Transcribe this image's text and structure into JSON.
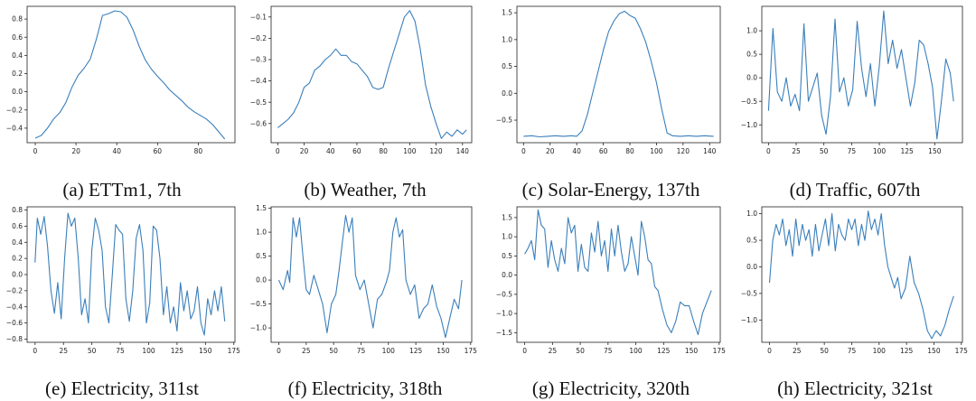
{
  "colors": {
    "line": "#3a7fbb",
    "axis": "#222222",
    "background": "#ffffff"
  },
  "chart_data": [
    {
      "id": "a",
      "type": "line",
      "caption": "(a) ETTm1, 7th",
      "xlim": [
        -4,
        98
      ],
      "ylim": [
        -0.56,
        0.94
      ],
      "xticks": [
        0,
        20,
        40,
        60,
        80
      ],
      "yticks": [
        -0.4,
        -0.2,
        0.0,
        0.2,
        0.4,
        0.6,
        0.8
      ],
      "ytick_labels": [
        "−0.4",
        "−0.2",
        "0.0",
        "0.2",
        "0.4",
        "0.6",
        "0.8"
      ],
      "x": [
        0,
        3,
        6,
        9,
        12,
        15,
        18,
        21,
        24,
        27,
        30,
        33,
        36,
        39,
        42,
        45,
        48,
        51,
        54,
        57,
        60,
        63,
        66,
        69,
        72,
        75,
        78,
        81,
        84,
        87,
        90,
        93
      ],
      "y": [
        -0.51,
        -0.48,
        -0.4,
        -0.3,
        -0.23,
        -0.12,
        0.05,
        0.18,
        0.26,
        0.36,
        0.58,
        0.84,
        0.86,
        0.89,
        0.88,
        0.82,
        0.68,
        0.5,
        0.35,
        0.25,
        0.17,
        0.1,
        0.02,
        -0.04,
        -0.1,
        -0.17,
        -0.22,
        -0.26,
        -0.3,
        -0.36,
        -0.44,
        -0.52
      ]
    },
    {
      "id": "b",
      "type": "line",
      "caption": "(b) Weather, 7th",
      "xlim": [
        -5,
        147
      ],
      "ylim": [
        -0.69,
        -0.05
      ],
      "xticks": [
        0,
        20,
        40,
        60,
        80,
        100,
        120,
        140
      ],
      "yticks": [
        -0.6,
        -0.5,
        -0.4,
        -0.3,
        -0.2,
        -0.1
      ],
      "ytick_labels": [
        "−0.6",
        "−0.5",
        "−0.4",
        "−0.3",
        "−0.2",
        "−0.1"
      ],
      "x": [
        0,
        4,
        8,
        12,
        16,
        20,
        24,
        28,
        32,
        36,
        40,
        44,
        48,
        52,
        56,
        60,
        64,
        68,
        72,
        76,
        80,
        84,
        88,
        92,
        96,
        100,
        104,
        108,
        112,
        116,
        120,
        124,
        128,
        132,
        136,
        140,
        143
      ],
      "y": [
        -0.62,
        -0.6,
        -0.58,
        -0.55,
        -0.5,
        -0.43,
        -0.41,
        -0.35,
        -0.33,
        -0.3,
        -0.28,
        -0.25,
        -0.28,
        -0.28,
        -0.31,
        -0.32,
        -0.35,
        -0.38,
        -0.43,
        -0.44,
        -0.43,
        -0.34,
        -0.26,
        -0.18,
        -0.1,
        -0.07,
        -0.12,
        -0.25,
        -0.42,
        -0.52,
        -0.6,
        -0.67,
        -0.64,
        -0.66,
        -0.63,
        -0.65,
        -0.63
      ]
    },
    {
      "id": "c",
      "type": "line",
      "caption": "(c) Solar-Energy, 137th",
      "xlim": [
        -5,
        148
      ],
      "ylim": [
        -0.92,
        1.62
      ],
      "xticks": [
        0,
        20,
        40,
        60,
        80,
        100,
        120,
        140
      ],
      "yticks": [
        -0.5,
        0.0,
        0.5,
        1.0,
        1.5
      ],
      "ytick_labels": [
        "−0.5",
        "0.0",
        "0.5",
        "1.0",
        "1.5"
      ],
      "x": [
        0,
        6,
        12,
        18,
        24,
        30,
        36,
        40,
        44,
        48,
        52,
        56,
        60,
        64,
        68,
        72,
        76,
        80,
        84,
        88,
        92,
        96,
        100,
        104,
        108,
        112,
        118,
        124,
        130,
        136,
        143
      ],
      "y": [
        -0.8,
        -0.79,
        -0.81,
        -0.8,
        -0.79,
        -0.8,
        -0.79,
        -0.8,
        -0.7,
        -0.4,
        0.0,
        0.4,
        0.8,
        1.15,
        1.35,
        1.48,
        1.53,
        1.45,
        1.4,
        1.2,
        0.95,
        0.6,
        0.2,
        -0.3,
        -0.74,
        -0.79,
        -0.8,
        -0.79,
        -0.8,
        -0.79,
        -0.8
      ]
    },
    {
      "id": "d",
      "type": "line",
      "caption": "(d) Traffic, 607th",
      "xlim": [
        -6,
        175
      ],
      "ylim": [
        -1.38,
        1.52
      ],
      "xticks": [
        0,
        25,
        50,
        75,
        100,
        125,
        150
      ],
      "yticks": [
        -1.0,
        -0.5,
        0.0,
        0.5,
        1.0
      ],
      "ytick_labels": [
        "−1.0",
        "−0.5",
        "0.0",
        "0.5",
        "1.0"
      ],
      "x": [
        0,
        4,
        8,
        12,
        16,
        20,
        24,
        28,
        32,
        36,
        40,
        44,
        48,
        52,
        56,
        60,
        64,
        68,
        72,
        76,
        80,
        84,
        88,
        92,
        96,
        100,
        104,
        108,
        112,
        116,
        120,
        124,
        128,
        132,
        136,
        140,
        144,
        148,
        152,
        156,
        160,
        164,
        167
      ],
      "y": [
        -0.7,
        1.05,
        -0.3,
        -0.5,
        0.0,
        -0.6,
        -0.35,
        -0.7,
        1.15,
        -0.5,
        -0.2,
        0.1,
        -0.8,
        -1.2,
        -0.4,
        1.25,
        -0.3,
        0.0,
        -0.6,
        -0.25,
        1.2,
        0.2,
        -0.4,
        0.3,
        -0.6,
        0.25,
        1.42,
        0.3,
        0.8,
        0.2,
        0.6,
        0.0,
        -0.6,
        -0.1,
        0.8,
        0.7,
        0.3,
        -0.2,
        -1.3,
        -0.5,
        0.4,
        0.1,
        -0.5
      ]
    },
    {
      "id": "e",
      "type": "line",
      "caption": "(e) Electricity, 311st",
      "xlim": [
        -7,
        176
      ],
      "ylim": [
        -0.84,
        0.84
      ],
      "xticks": [
        0,
        25,
        50,
        75,
        100,
        125,
        150,
        175
      ],
      "yticks": [
        -0.8,
        -0.6,
        -0.4,
        -0.2,
        0.0,
        0.2,
        0.4,
        0.6,
        0.8
      ],
      "ytick_labels": [
        "−0.8",
        "−0.6",
        "−0.4",
        "−0.2",
        "0.0",
        "0.2",
        "0.4",
        "0.6",
        "0.8"
      ],
      "x": [
        0,
        2,
        5,
        8,
        11,
        14,
        17,
        20,
        23,
        26,
        29,
        32,
        35,
        38,
        41,
        44,
        47,
        50,
        53,
        56,
        59,
        62,
        65,
        68,
        71,
        74,
        77,
        80,
        83,
        86,
        89,
        92,
        95,
        98,
        101,
        104,
        107,
        110,
        113,
        116,
        119,
        122,
        125,
        128,
        131,
        134,
        137,
        140,
        143,
        146,
        149,
        152,
        155,
        158,
        161,
        164,
        167
      ],
      "y": [
        0.15,
        0.7,
        0.5,
        0.72,
        0.35,
        -0.2,
        -0.48,
        -0.1,
        -0.55,
        0.2,
        0.76,
        0.6,
        0.7,
        0.2,
        -0.5,
        -0.3,
        -0.6,
        0.3,
        0.7,
        0.55,
        0.3,
        -0.4,
        -0.6,
        0.0,
        0.62,
        0.55,
        0.5,
        -0.3,
        -0.58,
        -0.2,
        0.45,
        0.62,
        0.3,
        -0.6,
        -0.35,
        0.6,
        0.55,
        0.2,
        -0.5,
        -0.15,
        -0.6,
        -0.4,
        -0.7,
        -0.1,
        -0.45,
        -0.2,
        -0.55,
        -0.45,
        -0.15,
        -0.6,
        -0.75,
        -0.3,
        -0.5,
        -0.2,
        -0.45,
        -0.15,
        -0.58
      ]
    },
    {
      "id": "f",
      "type": "line",
      "caption": "(f) Electricity, 318th",
      "xlim": [
        -7,
        176
      ],
      "ylim": [
        -1.3,
        1.53
      ],
      "xticks": [
        0,
        25,
        50,
        75,
        100,
        125,
        150,
        175
      ],
      "yticks": [
        -1.0,
        -0.5,
        0.0,
        0.5,
        1.0,
        1.5
      ],
      "ytick_labels": [
        "−1.0",
        "−0.5",
        "0.0",
        "0.5",
        "1.0",
        "1.5"
      ],
      "x": [
        0,
        4,
        8,
        10,
        13,
        16,
        19,
        22,
        25,
        28,
        32,
        36,
        40,
        44,
        48,
        52,
        55,
        58,
        61,
        64,
        67,
        70,
        74,
        78,
        82,
        86,
        90,
        94,
        98,
        101,
        104,
        107,
        110,
        113,
        116,
        120,
        124,
        128,
        132,
        136,
        140,
        144,
        148,
        152,
        156,
        160,
        164,
        167
      ],
      "y": [
        0.0,
        -0.2,
        0.2,
        -0.05,
        1.3,
        0.9,
        1.3,
        0.5,
        -0.2,
        -0.3,
        0.1,
        -0.2,
        -0.5,
        -1.1,
        -0.5,
        -0.3,
        0.2,
        0.8,
        1.35,
        1.0,
        1.3,
        0.1,
        -0.2,
        0.0,
        -0.5,
        -1.0,
        -0.4,
        -0.3,
        -0.05,
        0.2,
        1.0,
        1.3,
        0.9,
        1.05,
        0.0,
        -0.3,
        -0.1,
        -0.8,
        -0.6,
        -0.5,
        -0.1,
        -0.55,
        -0.8,
        -1.2,
        -0.8,
        -0.4,
        -0.6,
        0.0
      ]
    },
    {
      "id": "g",
      "type": "line",
      "caption": "(g) Electricity, 320th",
      "xlim": [
        -7,
        176
      ],
      "ylim": [
        -1.75,
        1.78
      ],
      "xticks": [
        0,
        25,
        50,
        75,
        100,
        125,
        150,
        175
      ],
      "yticks": [
        -1.5,
        -1.0,
        -0.5,
        0.0,
        0.5,
        1.0,
        1.5
      ],
      "ytick_labels": [
        "−1.5",
        "−1.0",
        "−0.5",
        "0.0",
        "0.5",
        "1.0",
        "1.5"
      ],
      "x": [
        0,
        3,
        6,
        9,
        12,
        15,
        18,
        21,
        24,
        27,
        30,
        33,
        36,
        39,
        42,
        45,
        48,
        51,
        54,
        57,
        60,
        63,
        66,
        69,
        72,
        75,
        78,
        81,
        84,
        87,
        90,
        93,
        96,
        99,
        102,
        105,
        108,
        111,
        114,
        117,
        120,
        124,
        128,
        132,
        136,
        140,
        144,
        148,
        152,
        156,
        160,
        164,
        168
      ],
      "y": [
        0.55,
        0.7,
        0.9,
        0.4,
        1.7,
        1.3,
        1.2,
        0.2,
        0.9,
        0.4,
        0.1,
        0.7,
        0.3,
        1.5,
        1.1,
        1.3,
        0.1,
        0.8,
        0.2,
        0.1,
        1.1,
        0.6,
        1.4,
        0.5,
        0.9,
        0.1,
        1.2,
        0.5,
        1.3,
        0.6,
        0.1,
        0.3,
        1.0,
        0.5,
        0.0,
        1.4,
        1.0,
        0.4,
        0.3,
        -0.3,
        -0.4,
        -0.9,
        -1.3,
        -1.5,
        -1.2,
        -0.7,
        -0.8,
        -0.8,
        -1.2,
        -1.55,
        -1.0,
        -0.7,
        -0.4
      ]
    },
    {
      "id": "h",
      "type": "line",
      "caption": "(h) Electricity, 321st",
      "xlim": [
        -7,
        176
      ],
      "ylim": [
        -1.42,
        1.13
      ],
      "xticks": [
        0,
        25,
        50,
        75,
        100,
        125,
        150,
        175
      ],
      "yticks": [
        -1.0,
        -0.5,
        0.0,
        0.5,
        1.0
      ],
      "ytick_labels": [
        "−1.0",
        "−0.5",
        "0.0",
        "0.5",
        "1.0"
      ],
      "x": [
        0,
        3,
        6,
        9,
        12,
        15,
        18,
        21,
        24,
        27,
        30,
        33,
        36,
        39,
        42,
        45,
        48,
        51,
        54,
        57,
        60,
        63,
        66,
        69,
        72,
        75,
        78,
        81,
        84,
        87,
        90,
        93,
        96,
        99,
        102,
        105,
        108,
        111,
        114,
        117,
        120,
        124,
        128,
        132,
        136,
        140,
        144,
        148,
        152,
        156,
        160,
        164,
        168
      ],
      "y": [
        -0.3,
        0.5,
        0.8,
        0.6,
        0.9,
        0.4,
        0.7,
        0.2,
        0.9,
        0.4,
        0.8,
        0.5,
        0.7,
        0.2,
        0.8,
        0.3,
        0.6,
        0.9,
        0.4,
        1.0,
        0.3,
        0.8,
        0.6,
        0.5,
        0.9,
        0.7,
        0.9,
        0.4,
        0.8,
        0.5,
        1.05,
        0.7,
        0.9,
        0.6,
        1.0,
        0.4,
        0.0,
        -0.2,
        -0.4,
        -0.2,
        -0.6,
        -0.4,
        0.2,
        -0.3,
        -0.5,
        -0.8,
        -1.2,
        -1.35,
        -1.2,
        -1.3,
        -1.1,
        -0.8,
        -0.55
      ]
    }
  ]
}
